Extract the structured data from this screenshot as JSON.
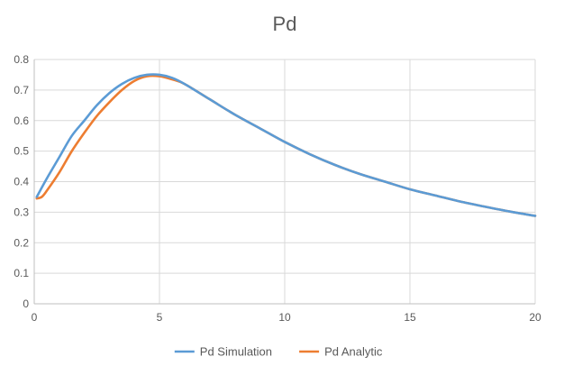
{
  "chart_data": {
    "type": "line",
    "title": "Pd",
    "xlabel": "",
    "ylabel": "",
    "xlim": [
      0,
      20
    ],
    "ylim": [
      0,
      0.8
    ],
    "xticks": [
      0,
      5,
      10,
      15,
      20
    ],
    "yticks": [
      0,
      0.1,
      0.2,
      0.3,
      0.4,
      0.5,
      0.6,
      0.7,
      0.8
    ],
    "grid": true,
    "legend_position": "bottom",
    "series": [
      {
        "name": "Pd Simulation",
        "color": "#5B9BD5",
        "x": [
          0.1,
          0.5,
          1,
          1.5,
          2,
          2.5,
          3,
          3.5,
          4,
          4.5,
          5,
          5.5,
          6,
          7,
          8,
          9,
          10,
          11,
          12,
          13,
          14,
          15,
          16,
          17,
          18,
          19,
          20
        ],
        "y": [
          0.35,
          0.41,
          0.48,
          0.55,
          0.6,
          0.65,
          0.69,
          0.72,
          0.74,
          0.75,
          0.75,
          0.74,
          0.72,
          0.67,
          0.62,
          0.575,
          0.53,
          0.49,
          0.455,
          0.425,
          0.4,
          0.375,
          0.355,
          0.335,
          0.318,
          0.302,
          0.288
        ]
      },
      {
        "name": "Pd Analytic",
        "color": "#ED7D31",
        "x": [
          0.1,
          0.3,
          0.5,
          1,
          1.5,
          2,
          2.5,
          3,
          3.5,
          4,
          4.5,
          5,
          5.5,
          6,
          7,
          8,
          9,
          10,
          11,
          12,
          13,
          14,
          15,
          16,
          17,
          18,
          19,
          20
        ],
        "y": [
          0.345,
          0.35,
          0.37,
          0.43,
          0.5,
          0.56,
          0.615,
          0.66,
          0.7,
          0.73,
          0.745,
          0.745,
          0.735,
          0.72,
          0.67,
          0.62,
          0.575,
          0.53,
          0.49,
          0.455,
          0.425,
          0.4,
          0.375,
          0.355,
          0.335,
          0.318,
          0.302,
          0.288
        ]
      }
    ]
  }
}
